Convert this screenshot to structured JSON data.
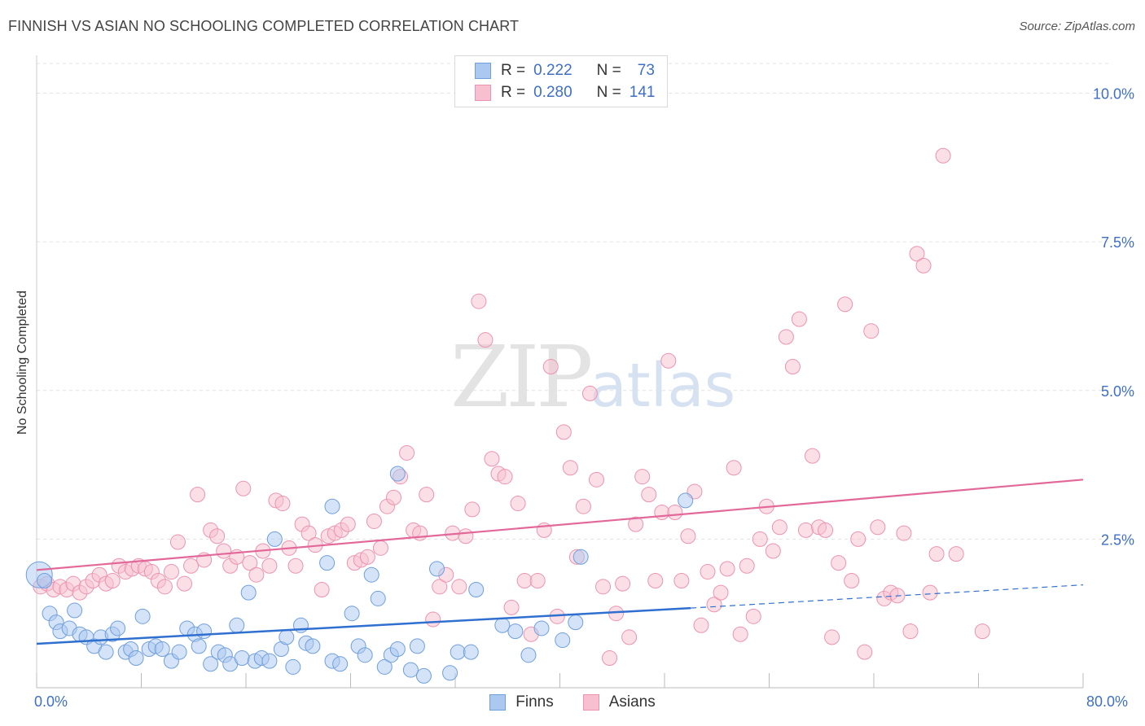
{
  "header": {
    "title": "FINNISH VS ASIAN NO SCHOOLING COMPLETED CORRELATION CHART",
    "source": "Source: ZipAtlas.com"
  },
  "watermark": {
    "zip": "ZIP",
    "atlas": "atlas"
  },
  "legend": {
    "finns": {
      "r_label": "R =",
      "r_value": "0.222",
      "n_label": "N =",
      "n_value": "73"
    },
    "asians": {
      "r_label": "R =",
      "r_value": "0.280",
      "n_label": "N =",
      "n_value": "141"
    }
  },
  "colors": {
    "finns_fill": "#aac8f0",
    "finns_stroke": "#6f9fdd",
    "finns_line": "#2f6fcf",
    "asians_fill": "#f7bfd0",
    "asians_stroke": "#ec93b0",
    "asians_line": "#e3689a",
    "axis_text": "#3f6fc5"
  },
  "chart_data": {
    "type": "scatter",
    "title": "FINNISH VS ASIAN NO SCHOOLING COMPLETED CORRELATION CHART",
    "ylabel": "No Schooling Completed",
    "xlabel": "",
    "xlim": [
      0,
      80
    ],
    "ylim": [
      0,
      10.5
    ],
    "x_tick_labels": [
      "0.0%",
      "80.0%"
    ],
    "y_ticks": [
      {
        "value": 2.5,
        "label": "2.5%"
      },
      {
        "value": 5.0,
        "label": "5.0%"
      },
      {
        "value": 7.5,
        "label": "7.5%"
      },
      {
        "value": 10.0,
        "label": "10.0%"
      }
    ],
    "grid": true,
    "legend_position": "top-center",
    "series": [
      {
        "name": "Finns",
        "trend": {
          "x0": 0,
          "y0": 0.74,
          "x1": 50,
          "y1": 1.34,
          "dash_to_x": 80,
          "dash_to_y": 1.73
        },
        "points": [
          [
            0.2,
            1.9
          ],
          [
            1,
            1.25
          ],
          [
            1.5,
            1.1
          ],
          [
            1.8,
            0.95
          ],
          [
            2.5,
            1.0
          ],
          [
            2.9,
            1.3
          ],
          [
            3.3,
            0.9
          ],
          [
            3.8,
            0.85
          ],
          [
            4.4,
            0.7
          ],
          [
            4.9,
            0.85
          ],
          [
            5.3,
            0.6
          ],
          [
            5.8,
            0.9
          ],
          [
            6.2,
            1.0
          ],
          [
            6.8,
            0.6
          ],
          [
            7.2,
            0.65
          ],
          [
            7.6,
            0.5
          ],
          [
            8.1,
            1.2
          ],
          [
            8.6,
            0.65
          ],
          [
            9.1,
            0.7
          ],
          [
            9.6,
            0.65
          ],
          [
            10.3,
            0.45
          ],
          [
            10.9,
            0.6
          ],
          [
            11.5,
            1.0
          ],
          [
            12.1,
            0.9
          ],
          [
            12.4,
            0.7
          ],
          [
            12.8,
            0.95
          ],
          [
            13.3,
            0.4
          ],
          [
            13.9,
            0.6
          ],
          [
            14.4,
            0.55
          ],
          [
            14.8,
            0.4
          ],
          [
            15.3,
            1.05
          ],
          [
            15.7,
            0.5
          ],
          [
            16.2,
            1.6
          ],
          [
            16.7,
            0.45
          ],
          [
            17.2,
            0.5
          ],
          [
            17.8,
            0.45
          ],
          [
            18.2,
            2.5
          ],
          [
            18.7,
            0.65
          ],
          [
            19.1,
            0.85
          ],
          [
            19.6,
            0.35
          ],
          [
            20.2,
            1.05
          ],
          [
            20.6,
            0.75
          ],
          [
            21.1,
            0.7
          ],
          [
            22.2,
            2.1
          ],
          [
            22.6,
            0.45
          ],
          [
            23.2,
            0.4
          ],
          [
            24.1,
            1.25
          ],
          [
            24.6,
            0.7
          ],
          [
            25.1,
            0.55
          ],
          [
            25.6,
            1.9
          ],
          [
            26.1,
            1.5
          ],
          [
            26.6,
            0.35
          ],
          [
            27.1,
            0.55
          ],
          [
            27.6,
            0.65
          ],
          [
            28.6,
            0.3
          ],
          [
            29.1,
            0.7
          ],
          [
            29.6,
            0.2
          ],
          [
            30.6,
            2.0
          ],
          [
            31.6,
            0.25
          ],
          [
            32.2,
            0.6
          ],
          [
            33.2,
            0.6
          ],
          [
            35.6,
            1.05
          ],
          [
            36.6,
            0.95
          ],
          [
            37.6,
            0.55
          ],
          [
            38.6,
            1.0
          ],
          [
            40.2,
            0.8
          ],
          [
            41.2,
            1.1
          ],
          [
            41.6,
            2.2
          ],
          [
            27.6,
            3.6
          ],
          [
            22.6,
            3.05
          ],
          [
            33.6,
            1.65
          ],
          [
            49.6,
            3.15
          ],
          [
            0.6,
            1.8
          ]
        ]
      },
      {
        "name": "Asians",
        "trend": {
          "x0": 0,
          "y0": 1.98,
          "x1": 80,
          "y1": 3.5
        },
        "points": [
          [
            0.3,
            1.7
          ],
          [
            0.8,
            1.75
          ],
          [
            1.3,
            1.65
          ],
          [
            1.8,
            1.7
          ],
          [
            2.3,
            1.65
          ],
          [
            2.8,
            1.75
          ],
          [
            3.3,
            1.6
          ],
          [
            3.8,
            1.7
          ],
          [
            4.3,
            1.8
          ],
          [
            4.8,
            1.9
          ],
          [
            5.3,
            1.75
          ],
          [
            5.8,
            1.8
          ],
          [
            6.3,
            2.05
          ],
          [
            6.8,
            1.95
          ],
          [
            7.3,
            2.0
          ],
          [
            7.8,
            2.05
          ],
          [
            8.3,
            2.0
          ],
          [
            8.8,
            1.95
          ],
          [
            9.3,
            1.8
          ],
          [
            9.8,
            1.7
          ],
          [
            10.3,
            1.95
          ],
          [
            10.8,
            2.45
          ],
          [
            11.3,
            1.75
          ],
          [
            11.8,
            2.05
          ],
          [
            12.3,
            3.25
          ],
          [
            12.8,
            2.15
          ],
          [
            13.3,
            2.65
          ],
          [
            13.8,
            2.55
          ],
          [
            14.3,
            2.3
          ],
          [
            14.8,
            2.05
          ],
          [
            15.3,
            2.2
          ],
          [
            15.8,
            3.35
          ],
          [
            16.3,
            2.1
          ],
          [
            16.8,
            1.9
          ],
          [
            17.3,
            2.3
          ],
          [
            17.8,
            2.05
          ],
          [
            18.3,
            3.15
          ],
          [
            18.8,
            3.1
          ],
          [
            19.3,
            2.35
          ],
          [
            19.8,
            2.05
          ],
          [
            20.3,
            2.75
          ],
          [
            20.8,
            2.6
          ],
          [
            21.3,
            2.4
          ],
          [
            21.8,
            1.65
          ],
          [
            22.3,
            2.55
          ],
          [
            22.8,
            2.6
          ],
          [
            23.3,
            2.65
          ],
          [
            23.8,
            2.75
          ],
          [
            24.3,
            2.1
          ],
          [
            24.8,
            2.15
          ],
          [
            25.3,
            2.2
          ],
          [
            25.8,
            2.8
          ],
          [
            26.3,
            2.35
          ],
          [
            26.8,
            3.05
          ],
          [
            27.3,
            3.2
          ],
          [
            27.8,
            3.55
          ],
          [
            28.3,
            3.95
          ],
          [
            28.8,
            2.65
          ],
          [
            29.3,
            2.6
          ],
          [
            29.8,
            3.25
          ],
          [
            30.3,
            1.15
          ],
          [
            30.8,
            1.7
          ],
          [
            31.3,
            1.9
          ],
          [
            31.8,
            2.6
          ],
          [
            32.3,
            1.7
          ],
          [
            32.8,
            2.55
          ],
          [
            33.3,
            3.0
          ],
          [
            33.8,
            6.5
          ],
          [
            34.3,
            5.85
          ],
          [
            34.8,
            3.85
          ],
          [
            35.3,
            3.6
          ],
          [
            35.8,
            3.55
          ],
          [
            36.3,
            1.35
          ],
          [
            36.8,
            3.1
          ],
          [
            37.3,
            1.8
          ],
          [
            37.8,
            0.9
          ],
          [
            38.3,
            1.8
          ],
          [
            38.8,
            2.65
          ],
          [
            39.3,
            5.4
          ],
          [
            39.8,
            1.2
          ],
          [
            40.3,
            4.3
          ],
          [
            40.8,
            3.7
          ],
          [
            41.3,
            2.2
          ],
          [
            41.8,
            3.05
          ],
          [
            42.3,
            4.95
          ],
          [
            42.8,
            3.5
          ],
          [
            43.3,
            1.7
          ],
          [
            43.8,
            0.5
          ],
          [
            44.3,
            1.25
          ],
          [
            44.8,
            1.75
          ],
          [
            45.3,
            0.85
          ],
          [
            45.8,
            2.75
          ],
          [
            46.3,
            3.55
          ],
          [
            46.8,
            3.25
          ],
          [
            47.3,
            1.8
          ],
          [
            47.8,
            2.95
          ],
          [
            48.3,
            5.5
          ],
          [
            48.8,
            2.95
          ],
          [
            49.3,
            1.8
          ],
          [
            49.8,
            2.55
          ],
          [
            50.3,
            3.3
          ],
          [
            50.8,
            1.05
          ],
          [
            51.3,
            1.95
          ],
          [
            51.8,
            1.4
          ],
          [
            52.3,
            1.6
          ],
          [
            52.8,
            2.0
          ],
          [
            53.3,
            3.7
          ],
          [
            53.8,
            0.9
          ],
          [
            54.3,
            2.05
          ],
          [
            54.8,
            1.2
          ],
          [
            55.3,
            2.5
          ],
          [
            55.8,
            3.05
          ],
          [
            56.3,
            2.3
          ],
          [
            56.8,
            2.7
          ],
          [
            57.3,
            5.9
          ],
          [
            57.8,
            5.4
          ],
          [
            58.3,
            6.2
          ],
          [
            58.8,
            2.65
          ],
          [
            59.3,
            3.9
          ],
          [
            59.8,
            2.7
          ],
          [
            60.3,
            2.65
          ],
          [
            60.8,
            0.85
          ],
          [
            61.3,
            2.1
          ],
          [
            61.8,
            6.45
          ],
          [
            62.3,
            1.8
          ],
          [
            62.8,
            2.5
          ],
          [
            63.3,
            0.6
          ],
          [
            63.8,
            6.0
          ],
          [
            64.3,
            2.7
          ],
          [
            64.8,
            1.5
          ],
          [
            65.3,
            1.6
          ],
          [
            65.8,
            1.55
          ],
          [
            66.3,
            2.6
          ],
          [
            66.8,
            0.95
          ],
          [
            67.3,
            7.3
          ],
          [
            67.8,
            7.1
          ],
          [
            68.3,
            1.6
          ],
          [
            68.8,
            2.25
          ],
          [
            69.3,
            8.95
          ],
          [
            70.3,
            2.25
          ],
          [
            72.3,
            0.95
          ]
        ]
      }
    ]
  }
}
